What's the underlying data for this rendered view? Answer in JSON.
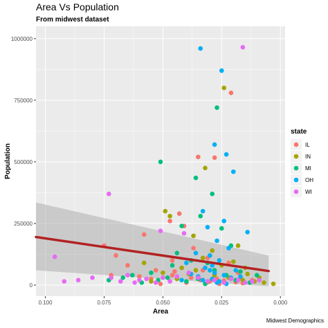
{
  "chart_data": {
    "type": "scatter",
    "title": "Area Vs Population",
    "subtitle": "From midwest dataset",
    "xlabel": "Area",
    "ylabel": "Population",
    "caption": "Midwest Demographics",
    "x_reversed": true,
    "xlim": [
      0.104,
      -0.002
    ],
    "ylim": [
      -45000,
      1050000
    ],
    "x_ticks": [
      {
        "value": 0.1,
        "label": "0.100"
      },
      {
        "value": 0.075,
        "label": "0.075"
      },
      {
        "value": 0.05,
        "label": "0.050"
      },
      {
        "value": 0.025,
        "label": "0.025"
      },
      {
        "value": 0.0,
        "label": "0.000"
      }
    ],
    "y_ticks": [
      {
        "value": 0,
        "label": "0"
      },
      {
        "value": 250000,
        "label": "250000"
      },
      {
        "value": 500000,
        "label": "500000"
      },
      {
        "value": 750000,
        "label": "750000"
      },
      {
        "value": 1000000,
        "label": "1000000"
      }
    ],
    "grid": true,
    "legend": {
      "title": "state",
      "placement": "right",
      "entries": [
        {
          "name": "IL",
          "color": "#F8766D"
        },
        {
          "name": "IN",
          "color": "#A3A500"
        },
        {
          "name": "MI",
          "color": "#00BF7D"
        },
        {
          "name": "OH",
          "color": "#00B0F6"
        },
        {
          "name": "WI",
          "color": "#E76BF3"
        }
      ]
    },
    "trend": {
      "color": "#B22222",
      "x_start": 0.104,
      "y_start": 195000,
      "x_end": 0.005,
      "y_end": 57000,
      "band_low_start": 60000,
      "band_high_start": 335000,
      "band_low_end": -5000,
      "band_high_end": 120000
    },
    "series": [
      {
        "name": "IL",
        "points": [
          [
            0.021,
            780000
          ],
          [
            0.035,
            520000
          ],
          [
            0.028,
            517000
          ],
          [
            0.075,
            160000
          ],
          [
            0.058,
            205000
          ],
          [
            0.043,
            290000
          ],
          [
            0.047,
            260000
          ],
          [
            0.041,
            240000
          ],
          [
            0.07,
            120000
          ],
          [
            0.065,
            80000
          ],
          [
            0.053,
            60000
          ],
          [
            0.046,
            40000
          ],
          [
            0.038,
            30000
          ],
          [
            0.034,
            20000
          ],
          [
            0.03,
            15000
          ],
          [
            0.027,
            25000
          ],
          [
            0.024,
            18000
          ],
          [
            0.019,
            12000
          ],
          [
            0.016,
            8000
          ],
          [
            0.037,
            150000
          ],
          [
            0.046,
            100000
          ],
          [
            0.031,
            110000
          ],
          [
            0.045,
            55000
          ],
          [
            0.06,
            35000
          ],
          [
            0.055,
            25000
          ],
          [
            0.033,
            60000
          ],
          [
            0.017,
            30000
          ],
          [
            0.012,
            20000
          ],
          [
            0.04,
            10000
          ],
          [
            0.072,
            40000
          ],
          [
            0.051,
            5000
          ],
          [
            0.026,
            5000
          ],
          [
            0.022,
            90000
          ],
          [
            0.018,
            50000
          ]
        ]
      },
      {
        "name": "IN",
        "points": [
          [
            0.024,
            800000
          ],
          [
            0.032,
            475000
          ],
          [
            0.049,
            300000
          ],
          [
            0.018,
            160000
          ],
          [
            0.037,
            200000
          ],
          [
            0.047,
            280000
          ],
          [
            0.029,
            140000
          ],
          [
            0.033,
            110000
          ],
          [
            0.058,
            90000
          ],
          [
            0.042,
            70000
          ],
          [
            0.028,
            40000
          ],
          [
            0.022,
            30000
          ],
          [
            0.016,
            20000
          ],
          [
            0.011,
            15000
          ],
          [
            0.007,
            10000
          ],
          [
            0.003,
            5000
          ],
          [
            0.05,
            50000
          ],
          [
            0.036,
            60000
          ],
          [
            0.025,
            80000
          ],
          [
            0.014,
            45000
          ],
          [
            0.044,
            25000
          ],
          [
            0.031,
            12000
          ],
          [
            0.009,
            30000
          ],
          [
            0.02,
            95000
          ],
          [
            0.039,
            45000
          ],
          [
            0.055,
            15000
          ],
          [
            0.015,
            70000
          ]
        ]
      },
      {
        "name": "MI",
        "points": [
          [
            0.027,
            720000
          ],
          [
            0.051,
            500000
          ],
          [
            0.036,
            435000
          ],
          [
            0.029,
            370000
          ],
          [
            0.034,
            280000
          ],
          [
            0.042,
            240000
          ],
          [
            0.025,
            230000
          ],
          [
            0.021,
            160000
          ],
          [
            0.044,
            130000
          ],
          [
            0.038,
            100000
          ],
          [
            0.031,
            90000
          ],
          [
            0.055,
            50000
          ],
          [
            0.063,
            40000
          ],
          [
            0.073,
            20000
          ],
          [
            0.048,
            30000
          ],
          [
            0.035,
            25000
          ],
          [
            0.023,
            40000
          ],
          [
            0.019,
            20000
          ],
          [
            0.013,
            10000
          ],
          [
            0.046,
            80000
          ],
          [
            0.028,
            60000
          ],
          [
            0.059,
            10000
          ],
          [
            0.067,
            30000
          ],
          [
            0.04,
            15000
          ],
          [
            0.032,
            5000
          ],
          [
            0.017,
            55000
          ],
          [
            0.052,
            20000
          ],
          [
            0.01,
            40000
          ]
        ]
      },
      {
        "name": "OH",
        "points": [
          [
            0.034,
            960000
          ],
          [
            0.025,
            870000
          ],
          [
            0.028,
            570000
          ],
          [
            0.023,
            530000
          ],
          [
            0.02,
            460000
          ],
          [
            0.033,
            300000
          ],
          [
            0.024,
            260000
          ],
          [
            0.014,
            215000
          ],
          [
            0.031,
            235000
          ],
          [
            0.027,
            180000
          ],
          [
            0.022,
            150000
          ],
          [
            0.03,
            120000
          ],
          [
            0.026,
            100000
          ],
          [
            0.029,
            80000
          ],
          [
            0.032,
            70000
          ],
          [
            0.019,
            60000
          ],
          [
            0.028,
            50000
          ],
          [
            0.024,
            40000
          ],
          [
            0.035,
            35000
          ],
          [
            0.021,
            30000
          ],
          [
            0.029,
            25000
          ],
          [
            0.033,
            20000
          ],
          [
            0.026,
            15000
          ],
          [
            0.038,
            45000
          ],
          [
            0.017,
            35000
          ],
          [
            0.04,
            90000
          ],
          [
            0.036,
            130000
          ],
          [
            0.03,
            60000
          ],
          [
            0.027,
            10000
          ],
          [
            0.023,
            5000
          ],
          [
            0.042,
            20000
          ]
        ]
      },
      {
        "name": "WI",
        "points": [
          [
            0.016,
            965000
          ],
          [
            0.073,
            370000
          ],
          [
            0.051,
            220000
          ],
          [
            0.041,
            210000
          ],
          [
            0.096,
            115000
          ],
          [
            0.092,
            15000
          ],
          [
            0.072,
            30000
          ],
          [
            0.068,
            15000
          ],
          [
            0.06,
            20000
          ],
          [
            0.057,
            25000
          ],
          [
            0.053,
            10000
          ],
          [
            0.05,
            30000
          ],
          [
            0.047,
            15000
          ],
          [
            0.044,
            35000
          ],
          [
            0.035,
            30000
          ],
          [
            0.031,
            15000
          ],
          [
            0.028,
            20000
          ],
          [
            0.024,
            10000
          ],
          [
            0.021,
            25000
          ],
          [
            0.018,
            20000
          ],
          [
            0.015,
            10000
          ],
          [
            0.012,
            15000
          ],
          [
            0.086,
            20000
          ],
          [
            0.08,
            30000
          ],
          [
            0.065,
            40000
          ],
          [
            0.039,
            50000
          ],
          [
            0.009,
            20000
          ],
          [
            0.062,
            10000
          ]
        ]
      }
    ]
  }
}
